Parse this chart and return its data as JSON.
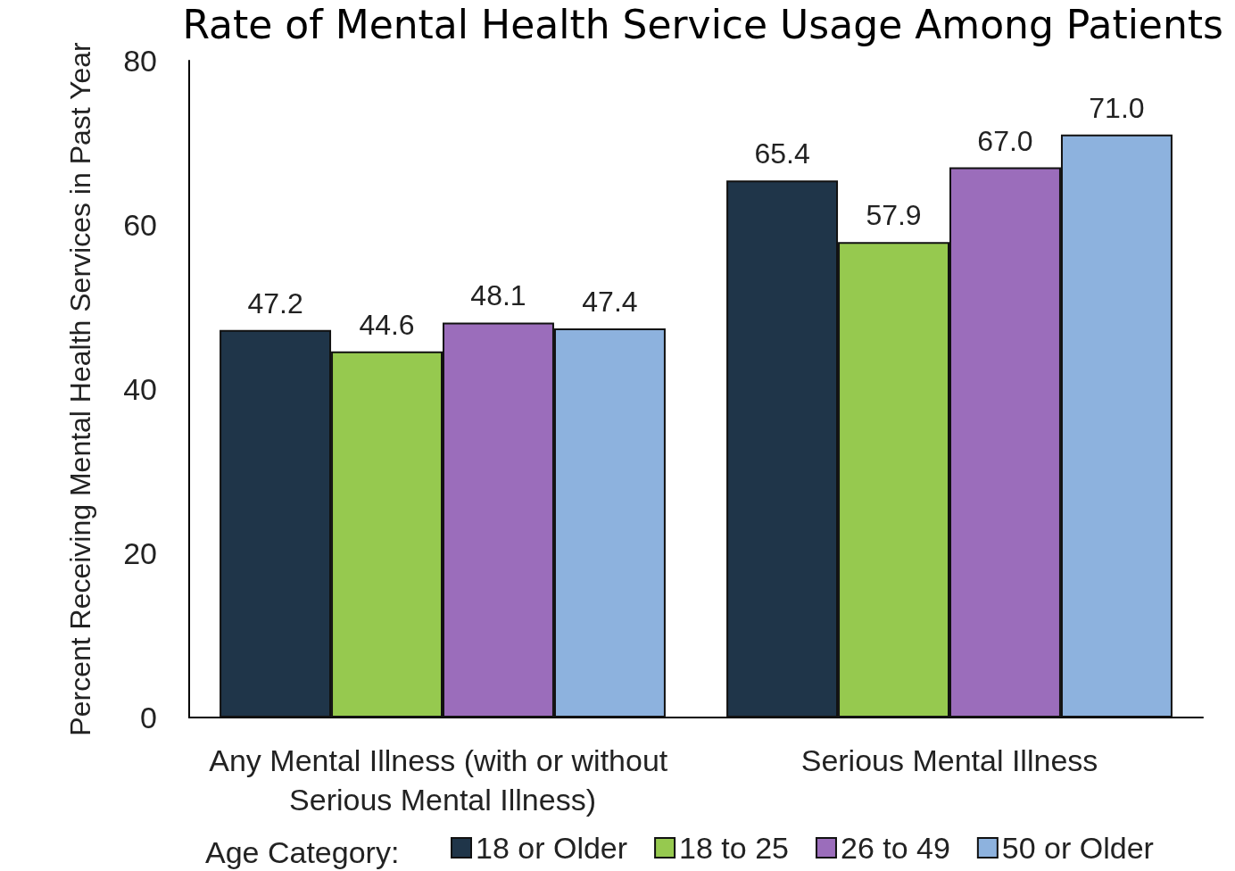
{
  "chart_data": {
    "type": "bar",
    "title": "Rate of Mental Health Service Usage Among Patients",
    "ylabel": "Percent Receiving Mental Health Services in Past Year",
    "legend_title": "Age Category:",
    "categories": [
      "Any Mental Illness (with or without Serious Mental Illness)",
      "Serious Mental Illness"
    ],
    "series": [
      {
        "name": "18 or Older",
        "color": "#1f3549",
        "values": [
          47.2,
          65.4
        ],
        "value_labels": [
          "47.2",
          "65.4"
        ]
      },
      {
        "name": "18 to 25",
        "color": "#96c94f",
        "values": [
          44.6,
          57.9
        ],
        "value_labels": [
          "44.6",
          "57.9"
        ]
      },
      {
        "name": "26 to 49",
        "color": "#9b6dbb",
        "values": [
          48.1,
          67.0
        ],
        "value_labels": [
          "48.1",
          "67.0"
        ]
      },
      {
        "name": "50 or Older",
        "color": "#8db2de",
        "values": [
          47.4,
          71.0
        ],
        "value_labels": [
          "47.4",
          "71.0"
        ]
      }
    ],
    "ylim": [
      0,
      80
    ],
    "yticks": [
      0,
      20,
      40,
      60,
      80
    ],
    "grid": false,
    "legend": "bottom"
  }
}
